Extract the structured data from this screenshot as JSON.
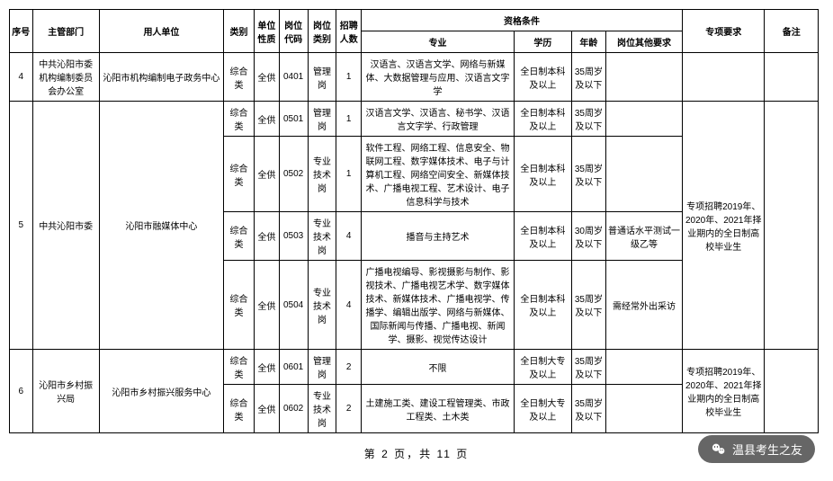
{
  "headers": {
    "xh": "序号",
    "zgbm": "主管部门",
    "yrdw": "用人单位",
    "lb": "类别",
    "dwxz": "单位性质",
    "gwdm": "岗位代码",
    "gwlb": "岗位类别",
    "zprs": "招聘人数",
    "zgtj": "资格条件",
    "zy": "专业",
    "xl": "学历",
    "nl": "年龄",
    "gwqt": "岗位其他要求",
    "zxyq": "专项要求",
    "bz": "备注"
  },
  "rows": [
    {
      "xh": "4",
      "zgbm": "中共沁阳市委机构编制委员会办公室",
      "yrdw": "沁阳市机构编制电子政务中心",
      "lb": "综合类",
      "dwxz": "全供",
      "gwdm": "0401",
      "gwlb": "管理岗",
      "zprs": "1",
      "zy": "汉语言、汉语言文学、网络与新媒体、大数据管理与应用、汉语言文字学",
      "xl": "全日制本科及以上",
      "nl": "35周岁及以下",
      "gwqt": "",
      "zxyq": "",
      "bz": ""
    },
    {
      "xh": "5",
      "zgbm": "中共沁阳市委",
      "yrdw": "沁阳市融媒体中心",
      "subrows": [
        {
          "lb": "综合类",
          "dwxz": "全供",
          "gwdm": "0501",
          "gwlb": "管理岗",
          "zprs": "1",
          "zy": "汉语言文学、汉语言、秘书学、汉语言文字学、行政管理",
          "xl": "全日制本科及以上",
          "nl": "35周岁及以下",
          "gwqt": ""
        },
        {
          "lb": "综合类",
          "dwxz": "全供",
          "gwdm": "0502",
          "gwlb": "专业技术岗",
          "zprs": "1",
          "zy": "软件工程、网络工程、信息安全、物联网工程、数字媒体技术、电子与计算机工程、网络空间安全、新媒体技术、广播电视工程、艺术设计、电子信息科学与技术",
          "xl": "全日制本科及以上",
          "nl": "35周岁及以下",
          "gwqt": ""
        },
        {
          "lb": "综合类",
          "dwxz": "全供",
          "gwdm": "0503",
          "gwlb": "专业技术岗",
          "zprs": "4",
          "zy": "播音与主持艺术",
          "xl": "全日制本科及以上",
          "nl": "30周岁及以下",
          "gwqt": "普通话水平测试一级乙等"
        },
        {
          "lb": "综合类",
          "dwxz": "全供",
          "gwdm": "0504",
          "gwlb": "专业技术岗",
          "zprs": "4",
          "zy": "广播电视编导、影视摄影与制作、影视技术、广播电视艺术学、数字媒体技术、新媒体技术、广播电视学、传播学、编辑出版学、网络与新媒体、国际新闻与传播、广播电视、新闻学、摄影、视觉传达设计",
          "xl": "全日制本科及以上",
          "nl": "35周岁及以下",
          "gwqt": "需经常外出采访"
        }
      ],
      "zxyq": "专项招聘2019年、2020年、2021年择业期内的全日制高校毕业生",
      "bz": ""
    },
    {
      "xh": "6",
      "zgbm": "沁阳市乡村振兴局",
      "yrdw": "沁阳市乡村振兴服务中心",
      "subrows": [
        {
          "lb": "综合类",
          "dwxz": "全供",
          "gwdm": "0601",
          "gwlb": "管理岗",
          "zprs": "2",
          "zy": "不限",
          "xl": "全日制大专及以上",
          "nl": "35周岁及以下",
          "gwqt": ""
        },
        {
          "lb": "综合类",
          "dwxz": "全供",
          "gwdm": "0602",
          "gwlb": "专业技术岗",
          "zprs": "2",
          "zy": "土建施工类、建设工程管理类、市政工程类、土木类",
          "xl": "全日制大专及以上",
          "nl": "35周岁及以下",
          "gwqt": ""
        }
      ],
      "zxyq": "专项招聘2019年、2020年、2021年择业期内的全日制高校毕业生",
      "bz": ""
    }
  ],
  "pager": {
    "prefix": "第",
    "current": "2",
    "middle": "页，共",
    "total": "11",
    "suffix": "页"
  },
  "watermark": {
    "text": "温县考生之友"
  }
}
